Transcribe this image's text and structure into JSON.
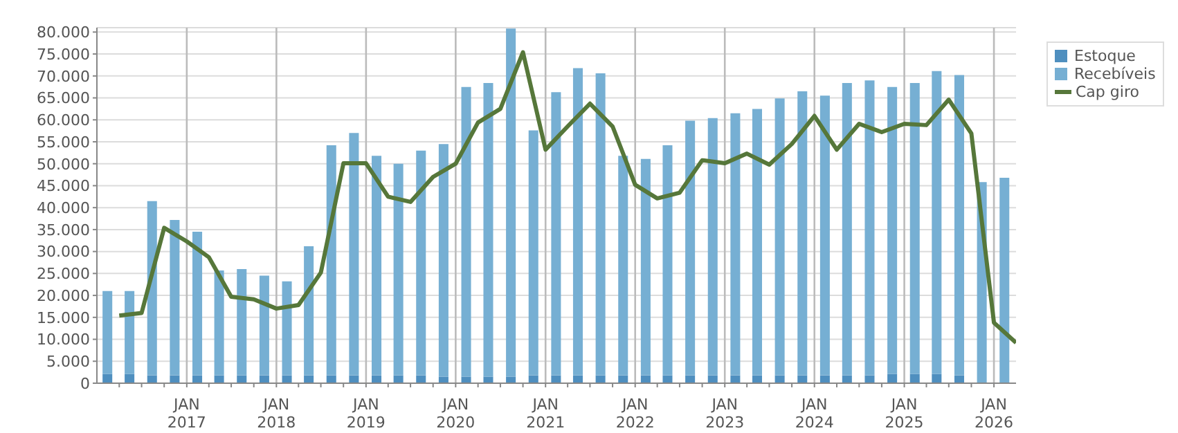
{
  "chart_data": {
    "type": "bar",
    "stacked": true,
    "x": [
      "2016-02-15",
      "2016-05-15",
      "2016-08-15",
      "2016-11-15",
      "2017-02-15",
      "2017-05-15",
      "2017-08-15",
      "2017-11-15",
      "2018-02-15",
      "2018-05-15",
      "2018-08-15",
      "2018-11-15",
      "2019-02-15",
      "2019-05-15",
      "2019-08-15",
      "2019-11-15",
      "2020-02-15",
      "2020-05-15",
      "2020-08-15",
      "2020-11-15",
      "2021-02-15",
      "2021-05-15",
      "2021-08-15",
      "2021-11-15",
      "2022-02-15",
      "2022-05-15",
      "2022-08-15",
      "2022-11-15",
      "2023-02-15",
      "2023-05-15",
      "2023-08-15",
      "2023-11-15",
      "2024-02-15",
      "2024-05-15",
      "2024-08-15",
      "2024-11-15",
      "2025-02-15",
      "2025-05-15",
      "2025-08-15",
      "2025-11-15",
      "2026-02-15"
    ],
    "series": [
      {
        "name": "Estoque",
        "color": "#4f8fbf",
        "values": [
          2100,
          2100,
          1800,
          1800,
          1800,
          1800,
          1800,
          1800,
          1800,
          1800,
          1800,
          1800,
          1800,
          1800,
          1800,
          1500,
          1500,
          1500,
          1500,
          1800,
          1800,
          1800,
          1800,
          1800,
          1800,
          1800,
          1800,
          1800,
          1800,
          1800,
          1800,
          1800,
          1800,
          1800,
          1800,
          2100,
          2100,
          2100,
          1800,
          0,
          0
        ]
      },
      {
        "name": "Recebíveis",
        "color": "#76afd3",
        "values": [
          18900,
          18900,
          39700,
          35400,
          32700,
          23900,
          24200,
          22700,
          21400,
          29400,
          52400,
          55200,
          50000,
          48200,
          51200,
          53000,
          66000,
          66900,
          79300,
          55800,
          64500,
          70000,
          68800,
          50000,
          49300,
          52400,
          58000,
          58600,
          59700,
          60700,
          63100,
          64700,
          63700,
          66600,
          67200,
          65400,
          66300,
          69000,
          68400,
          45800,
          46800
        ]
      },
      {
        "name": "Cap giro",
        "type": "line",
        "color": "#56773a",
        "x": [
          "2016-04-01",
          "2016-07-01",
          "2016-10-01",
          "2017-01-01",
          "2017-04-01",
          "2017-07-01",
          "2017-10-01",
          "2018-01-01",
          "2018-04-01",
          "2018-07-01",
          "2018-10-01",
          "2019-01-01",
          "2019-04-01",
          "2019-07-01",
          "2019-10-01",
          "2020-01-01",
          "2020-04-01",
          "2020-07-01",
          "2020-10-01",
          "2021-01-01",
          "2021-04-01",
          "2021-07-01",
          "2021-10-01",
          "2022-01-01",
          "2022-04-01",
          "2022-07-01",
          "2022-10-01",
          "2023-01-01",
          "2023-04-01",
          "2023-07-01",
          "2023-10-01",
          "2024-01-01",
          "2024-04-01",
          "2024-07-01",
          "2024-10-01",
          "2025-01-01",
          "2025-04-01",
          "2025-07-01",
          "2025-10-01",
          "2026-01-01",
          "2026-04-01"
        ],
        "values": [
          15400,
          16000,
          35400,
          32300,
          28700,
          19700,
          19100,
          17000,
          17800,
          25200,
          50100,
          50100,
          42500,
          41300,
          47000,
          50000,
          59400,
          62500,
          75400,
          53200,
          58500,
          63700,
          58500,
          45200,
          42100,
          43400,
          50800,
          50100,
          52300,
          49800,
          54500,
          60900,
          53200,
          59100,
          57200,
          59100,
          58800,
          64600,
          56900,
          13800,
          9200
        ]
      }
    ],
    "xlim": [
      "2016-01-01",
      "2026-04-01"
    ],
    "xticks": [
      {
        "value": "2016-04-01",
        "label": null
      },
      {
        "value": "2016-07-01",
        "label": null
      },
      {
        "value": "2016-10-01",
        "label": null
      },
      {
        "value": "2017-01-01",
        "label": "JAN\n2017"
      },
      {
        "value": "2017-04-01",
        "label": null
      },
      {
        "value": "2017-07-01",
        "label": null
      },
      {
        "value": "2017-10-01",
        "label": null
      },
      {
        "value": "2018-01-01",
        "label": "JAN\n2018"
      },
      {
        "value": "2018-04-01",
        "label": null
      },
      {
        "value": "2018-07-01",
        "label": null
      },
      {
        "value": "2018-10-01",
        "label": null
      },
      {
        "value": "2019-01-01",
        "label": "JAN\n2019"
      },
      {
        "value": "2019-04-01",
        "label": null
      },
      {
        "value": "2019-07-01",
        "label": null
      },
      {
        "value": "2019-10-01",
        "label": null
      },
      {
        "value": "2020-01-01",
        "label": "JAN\n2020"
      },
      {
        "value": "2020-04-01",
        "label": null
      },
      {
        "value": "2020-07-01",
        "label": null
      },
      {
        "value": "2020-10-01",
        "label": null
      },
      {
        "value": "2021-01-01",
        "label": "JAN\n2021"
      },
      {
        "value": "2021-04-01",
        "label": null
      },
      {
        "value": "2021-07-01",
        "label": null
      },
      {
        "value": "2021-10-01",
        "label": null
      },
      {
        "value": "2022-01-01",
        "label": "JAN\n2022"
      },
      {
        "value": "2022-04-01",
        "label": null
      },
      {
        "value": "2022-07-01",
        "label": null
      },
      {
        "value": "2022-10-01",
        "label": null
      },
      {
        "value": "2023-01-01",
        "label": "JAN\n2023"
      },
      {
        "value": "2023-04-01",
        "label": null
      },
      {
        "value": "2023-07-01",
        "label": null
      },
      {
        "value": "2023-10-01",
        "label": null
      },
      {
        "value": "2024-01-01",
        "label": "JAN\n2024"
      },
      {
        "value": "2024-04-01",
        "label": null
      },
      {
        "value": "2024-07-01",
        "label": null
      },
      {
        "value": "2024-10-01",
        "label": null
      },
      {
        "value": "2025-01-01",
        "label": "JAN\n2025"
      },
      {
        "value": "2025-04-01",
        "label": null
      },
      {
        "value": "2025-07-01",
        "label": null
      },
      {
        "value": "2025-10-01",
        "label": null
      },
      {
        "value": "2026-01-01",
        "label": "JAN\n2026"
      }
    ],
    "ylim": [
      0,
      81000
    ],
    "yticks": [
      {
        "value": 0,
        "label": "0"
      },
      {
        "value": 5000,
        "label": "5.000"
      },
      {
        "value": 10000,
        "label": "10.000"
      },
      {
        "value": 15000,
        "label": "15.000"
      },
      {
        "value": 20000,
        "label": "20.000"
      },
      {
        "value": 25000,
        "label": "25.000"
      },
      {
        "value": 30000,
        "label": "30.000"
      },
      {
        "value": 35000,
        "label": "35.000"
      },
      {
        "value": 40000,
        "label": "40.000"
      },
      {
        "value": 45000,
        "label": "45.000"
      },
      {
        "value": 50000,
        "label": "50.000"
      },
      {
        "value": 55000,
        "label": "55.000"
      },
      {
        "value": 60000,
        "label": "60.000"
      },
      {
        "value": 65000,
        "label": "65.000"
      },
      {
        "value": 70000,
        "label": "70.000"
      },
      {
        "value": 75000,
        "label": "75.000"
      },
      {
        "value": 80000,
        "label": "80.000"
      }
    ],
    "grid": true,
    "legend": "top right",
    "marker": "none",
    "line_style": "solid"
  }
}
